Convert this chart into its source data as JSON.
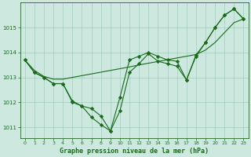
{
  "title": "Graphe pression niveau de la mer (hPa)",
  "background_color": "#cce8df",
  "grid_color": "#9ecfbf",
  "line_color": "#1a6b1a",
  "xlim": [
    -0.5,
    23.5
  ],
  "ylim": [
    1010.55,
    1016.0
  ],
  "yticks": [
    1011,
    1012,
    1013,
    1014,
    1015
  ],
  "xticks": [
    0,
    1,
    2,
    3,
    4,
    5,
    6,
    7,
    8,
    9,
    10,
    11,
    12,
    13,
    14,
    15,
    16,
    17,
    18,
    19,
    20,
    21,
    22,
    23
  ],
  "series_jagged1": [
    1013.7,
    1013.2,
    1013.0,
    1012.75,
    1012.75,
    1012.0,
    1011.85,
    1011.4,
    1011.1,
    1010.85,
    1012.2,
    1013.7,
    1013.85,
    1014.0,
    1013.85,
    1013.7,
    1013.65,
    1012.9,
    1013.9,
    1014.4,
    1015.0,
    1015.5,
    1015.75,
    1015.35
  ],
  "series_jagged2": [
    1013.7,
    1013.2,
    1013.0,
    1012.75,
    1012.75,
    1012.05,
    1011.85,
    1011.75,
    1011.45,
    1010.85,
    1011.65,
    1013.2,
    1013.55,
    1013.95,
    1013.65,
    1013.55,
    1013.45,
    1012.9,
    1013.85,
    1014.4,
    1015.0,
    1015.5,
    1015.75,
    1015.35
  ],
  "series_smooth": [
    1013.7,
    1013.28,
    1013.04,
    1012.93,
    1012.93,
    1013.0,
    1013.07,
    1013.14,
    1013.21,
    1013.28,
    1013.35,
    1013.42,
    1013.5,
    1013.57,
    1013.64,
    1013.71,
    1013.78,
    1013.85,
    1013.92,
    1014.1,
    1014.4,
    1014.8,
    1015.2,
    1015.35
  ]
}
